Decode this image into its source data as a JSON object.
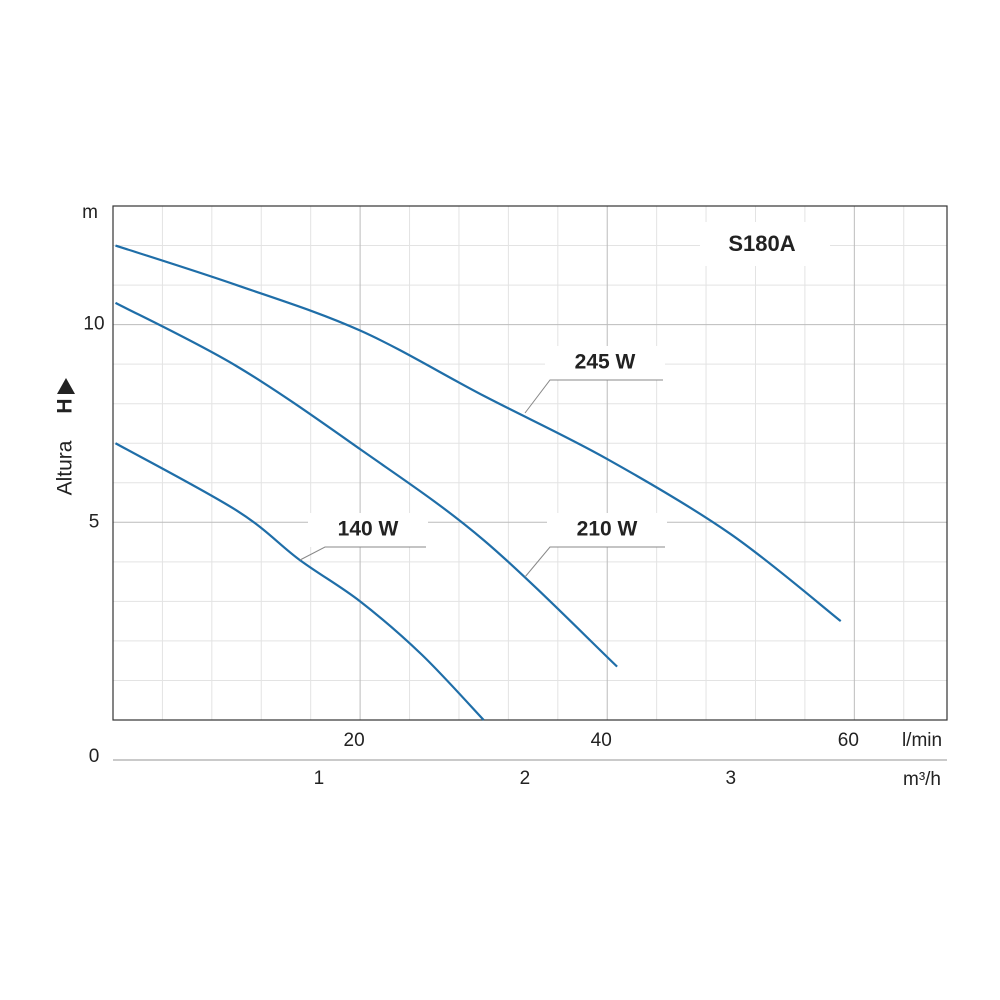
{
  "chart_data": {
    "type": "line",
    "title": "S180A",
    "ylabel": "Altura",
    "ylabel_symbol": "H",
    "yunit": "m",
    "xunit": "l/min",
    "x2unit": "m³/h",
    "xlim": [
      0,
      67.5
    ],
    "xticks": [
      20,
      40,
      60
    ],
    "xminorticks": [
      4,
      8,
      12,
      16,
      24,
      28,
      32,
      36,
      44,
      48,
      52,
      56,
      64
    ],
    "x2lim": [
      0,
      4.05
    ],
    "x2ticks": [
      1,
      2,
      3
    ],
    "ylim": [
      0,
      13
    ],
    "yticks": [
      0,
      5,
      10
    ],
    "yminorticks": [
      1,
      2,
      3,
      4,
      6,
      7,
      8,
      9,
      11,
      12
    ],
    "grid": true,
    "series": [
      {
        "name": "245 W",
        "color": "#1f6ea8",
        "x": [
          0.2,
          10,
          20,
          30,
          40,
          50,
          58.9
        ],
        "values": [
          12.0,
          11.0,
          9.85,
          8.2,
          6.6,
          4.7,
          2.5
        ]
      },
      {
        "name": "210 W",
        "color": "#1f6ea8",
        "x": [
          0.2,
          10,
          20,
          30,
          40.8
        ],
        "values": [
          10.55,
          8.95,
          6.85,
          4.55,
          1.35
        ]
      },
      {
        "name": "140 W",
        "color": "#1f6ea8",
        "x": [
          0.2,
          10,
          15.1,
          20,
          25,
          30
        ],
        "values": [
          7.0,
          5.3,
          4.05,
          3.0,
          1.65,
          0
        ]
      }
    ]
  }
}
